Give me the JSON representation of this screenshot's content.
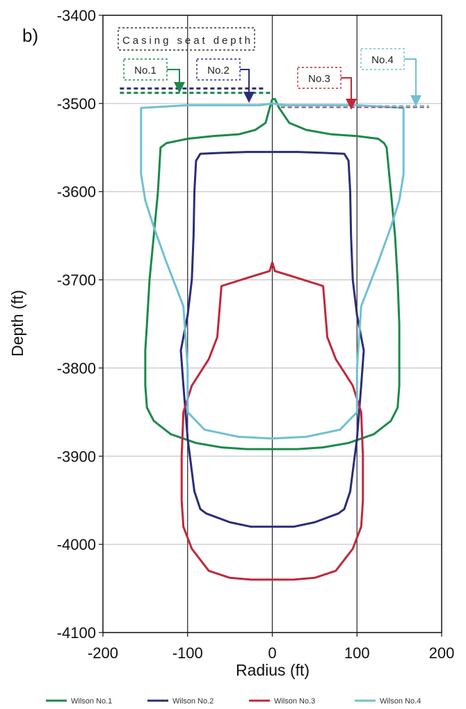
{
  "chart_data": {
    "type": "line",
    "panel_label": "b)",
    "xlabel": "Radius (ft)",
    "ylabel": "Depth (ft)",
    "xlim": [
      -200,
      200
    ],
    "ylim": [
      -4100,
      -3400
    ],
    "xticks": [
      -200,
      -100,
      0,
      100,
      200
    ],
    "yticks": [
      -3400,
      -3500,
      -3600,
      -3700,
      -3800,
      -3900,
      -4000,
      -4100
    ],
    "grid": "horizontal lines at each y tick, vertical lines at x = -100, 0, 100",
    "legend_position": "bottom",
    "casing_seat_label": "Casing seat depth",
    "series": [
      {
        "name": "Wilson No.1",
        "color": "#1a8a4a",
        "tag": "No.1",
        "casing_seat_depth": -3488,
        "x": [
          0,
          -3,
          -8,
          -20,
          -40,
          -70,
          -100,
          -125,
          -132,
          -135,
          -140,
          -145,
          -148,
          -150,
          -150,
          -148,
          -140,
          -120,
          -90,
          -60,
          -30,
          0,
          30,
          60,
          90,
          120,
          140,
          148,
          150,
          150,
          150,
          148,
          145,
          140,
          135,
          132,
          125,
          100,
          70,
          40,
          20,
          8,
          3,
          0
        ],
        "y": [
          -3495,
          -3505,
          -3522,
          -3530,
          -3535,
          -3537,
          -3540,
          -3545,
          -3550,
          -3600,
          -3650,
          -3700,
          -3750,
          -3780,
          -3820,
          -3845,
          -3860,
          -3875,
          -3885,
          -3890,
          -3892,
          -3892,
          -3892,
          -3890,
          -3885,
          -3875,
          -3860,
          -3845,
          -3820,
          -3780,
          -3750,
          -3700,
          -3650,
          -3600,
          -3550,
          -3545,
          -3540,
          -3537,
          -3535,
          -3530,
          -3522,
          -3505,
          -3495,
          -3495
        ]
      },
      {
        "name": "Wilson No.2",
        "color": "#2b2d78",
        "tag": "No.2",
        "casing_seat_depth": -3483,
        "x": [
          0,
          -30,
          -60,
          -85,
          -90,
          -92,
          -93,
          -95,
          -100,
          -108,
          -105,
          -100,
          -92,
          -85,
          -78,
          -50,
          -25,
          0,
          25,
          50,
          78,
          85,
          92,
          100,
          105,
          108,
          100,
          95,
          93,
          92,
          90,
          85,
          60,
          30,
          0
        ],
        "y": [
          -3555,
          -3555,
          -3556,
          -3557,
          -3565,
          -3600,
          -3650,
          -3700,
          -3740,
          -3780,
          -3820,
          -3880,
          -3940,
          -3960,
          -3965,
          -3975,
          -3980,
          -3980,
          -3980,
          -3975,
          -3965,
          -3960,
          -3940,
          -3880,
          -3820,
          -3780,
          -3740,
          -3700,
          -3650,
          -3600,
          -3565,
          -3557,
          -3556,
          -3555,
          -3555
        ]
      },
      {
        "name": "Wilson No.3",
        "color": "#c0283a",
        "tag": "No.3",
        "casing_seat_depth": -3504,
        "x": [
          0,
          -3,
          -20,
          -60,
          -65,
          -75,
          -95,
          -105,
          -107,
          -107,
          -105,
          -95,
          -75,
          -50,
          -25,
          0,
          25,
          50,
          75,
          95,
          105,
          107,
          107,
          105,
          95,
          75,
          65,
          60,
          20,
          3,
          0
        ],
        "y": [
          -3680,
          -3690,
          -3695,
          -3707,
          -3765,
          -3790,
          -3820,
          -3850,
          -3900,
          -3950,
          -3980,
          -4005,
          -4030,
          -4038,
          -4040,
          -4040,
          -4040,
          -4038,
          -4030,
          -4005,
          -3980,
          -3950,
          -3900,
          -3850,
          -3820,
          -3790,
          -3765,
          -3707,
          -3695,
          -3690,
          -3680
        ]
      },
      {
        "name": "Wilson No.4",
        "color": "#6fc0d3",
        "tag": "No.4",
        "casing_seat_depth": -3503,
        "x": [
          0,
          -15,
          -100,
          -155,
          -155,
          -150,
          -140,
          -125,
          -105,
          -100,
          -100,
          -80,
          -40,
          0,
          40,
          80,
          100,
          100,
          105,
          125,
          140,
          150,
          155,
          155,
          100,
          15,
          0
        ],
        "y": [
          -3500,
          -3502,
          -3502,
          -3505,
          -3580,
          -3610,
          -3640,
          -3680,
          -3730,
          -3800,
          -3850,
          -3870,
          -3878,
          -3880,
          -3878,
          -3870,
          -3850,
          -3800,
          -3730,
          -3680,
          -3640,
          -3610,
          -3580,
          -3505,
          -3502,
          -3502,
          -3500
        ]
      }
    ]
  }
}
